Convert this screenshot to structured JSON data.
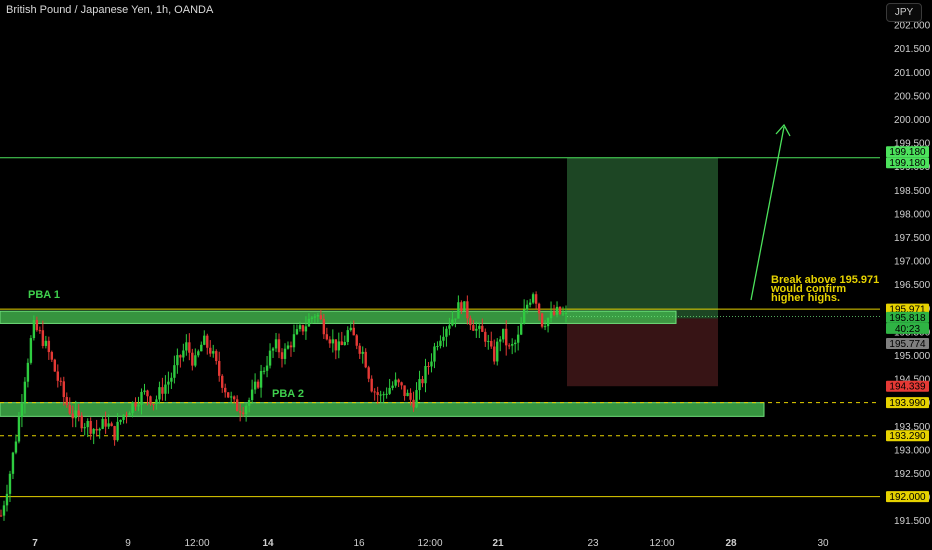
{
  "header": {
    "title": "British Pound / Japanese Yen, 1h, OANDA",
    "unit_button": "JPY"
  },
  "annotations": {
    "pba1": "PBA 1",
    "pba2": "PBA 2",
    "note_lines": [
      "Break above 195.971",
      "would confirm",
      "higher highs."
    ]
  },
  "price_axis": {
    "ticks": [
      "202.000",
      "201.500",
      "201.000",
      "200.500",
      "200.000",
      "199.500",
      "199.000",
      "198.500",
      "198.000",
      "197.500",
      "197.000",
      "196.500",
      "196.000",
      "195.500",
      "195.000",
      "194.500",
      "194.000",
      "193.500",
      "193.000",
      "192.500",
      "192.000",
      "191.500"
    ],
    "tick_values": [
      202,
      201.5,
      201,
      200.5,
      200,
      199.5,
      199,
      198.5,
      198,
      197.5,
      197,
      196.5,
      196,
      195.5,
      195,
      194.5,
      194,
      193.5,
      193,
      192.5,
      192,
      191.5
    ]
  },
  "time_axis": {
    "labels": [
      "7",
      "9",
      "12:00",
      "14",
      "16",
      "12:00",
      "21",
      "23",
      "12:00",
      "28",
      "30"
    ],
    "bold": [
      true,
      false,
      false,
      true,
      false,
      false,
      true,
      false,
      false,
      true,
      false
    ]
  },
  "price_labels": {
    "target_top": "199.180",
    "target_bottom": "199.180",
    "resistance": "195.971",
    "last_price": "195.818",
    "countdown": "40:23",
    "entry": "195.774",
    "stop": "194.339",
    "support1": "193.990",
    "support2": "193.290",
    "support3": "192.000"
  },
  "colors": {
    "background": "#000000",
    "candle_up": "#2ecc40",
    "candle_down": "#e53935",
    "zone_green": "#3fae4a",
    "level_yellow": "#e6d200",
    "target_green": "#4ce25c",
    "stop_red": "#e53935"
  },
  "chart_data": {
    "type": "candlestick",
    "symbol": "British Pound / Japanese Yen",
    "interval": "1h",
    "source": "OANDA",
    "ylim": [
      191.2,
      202.2
    ],
    "horizontal_levels": [
      {
        "price": 199.18,
        "color": "green"
      },
      {
        "price": 195.971,
        "color": "yellow"
      },
      {
        "price": 193.99,
        "color": "yellow",
        "style": "dashed"
      },
      {
        "price": 193.29,
        "color": "yellow",
        "style": "dashed"
      },
      {
        "price": 192.0,
        "color": "yellow"
      }
    ],
    "zones": [
      {
        "name": "PBA 1",
        "top": 195.95,
        "bottom": 195.69
      },
      {
        "name": "PBA 2",
        "top": 193.99,
        "bottom": 193.7
      }
    ],
    "position": {
      "entry": 195.774,
      "target": 199.18,
      "stop": 194.339
    },
    "last_price": 195.818,
    "close_path": [
      191.6,
      192.4,
      193.4,
      194.6,
      195.6,
      195.4,
      195.0,
      194.5,
      194.0,
      193.7,
      193.6,
      193.5,
      193.4,
      193.6,
      193.3,
      193.7,
      193.9,
      194.1,
      194.2,
      194.0,
      194.3,
      194.5,
      194.9,
      195.2,
      194.8,
      195.3,
      195.1,
      194.6,
      194.2,
      193.9,
      193.9,
      194.1,
      194.5,
      194.9,
      195.2,
      195.0,
      195.3,
      195.5,
      195.7,
      195.9,
      195.6,
      195.3,
      195.1,
      195.5,
      195.3,
      195.0,
      194.3,
      194.1,
      194.3,
      194.4,
      194.2,
      194.0,
      194.4,
      194.8,
      195.3,
      195.6,
      195.8,
      196.1,
      195.8,
      195.5,
      195.4,
      194.9,
      195.5,
      195.1,
      195.3,
      196.0,
      196.4,
      195.7,
      195.8,
      195.9,
      195.8
    ]
  }
}
